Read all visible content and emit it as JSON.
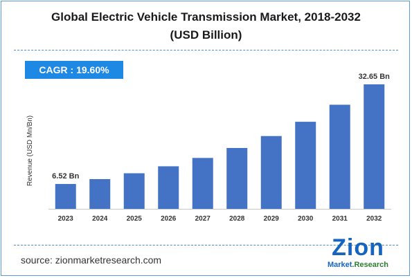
{
  "header": {
    "title_line1": "Global Electric Vehicle Transmission Market, 2018-2032",
    "title_line2": "(USD Billion)"
  },
  "cagr": {
    "label": "CAGR : 19.60%"
  },
  "source": {
    "text": "source: zionmarketresearch.com"
  },
  "logo": {
    "word": "Zion",
    "sub_market": "Market",
    "sub_research": "Research"
  },
  "colors": {
    "bar": "#4472c4",
    "accent": "#1e88e5",
    "divider": "#4a8fd0"
  },
  "chart_data": {
    "type": "bar",
    "title": "Global Electric Vehicle Transmission Market, 2018-2032 (USD Billion)",
    "xlabel": "",
    "ylabel": "Revenue (USD Mn/Bn)",
    "categories": [
      "2023",
      "2024",
      "2025",
      "2026",
      "2027",
      "2028",
      "2029",
      "2030",
      "2031",
      "2032"
    ],
    "values": [
      6.52,
      7.8,
      9.33,
      11.16,
      13.35,
      15.96,
      19.09,
      22.83,
      27.3,
      32.65
    ],
    "data_labels": {
      "2023": "6.52 Bn",
      "2032": "32.65 Bn"
    },
    "ylim": [
      0,
      33
    ],
    "grid": false,
    "legend": "none"
  }
}
